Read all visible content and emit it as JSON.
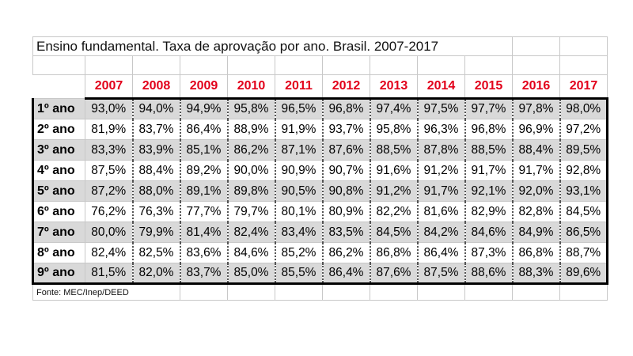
{
  "title": "Ensino fundamental. Taxa de aprovação por ano. Brasil. 2007-2017",
  "years": [
    "2007",
    "2008",
    "2009",
    "2010",
    "2011",
    "2012",
    "2013",
    "2014",
    "2015",
    "2016",
    "2017"
  ],
  "rows": [
    {
      "label": "1º ano",
      "values": [
        "93,0%",
        "94,0%",
        "94,9%",
        "95,8%",
        "96,5%",
        "96,8%",
        "97,4%",
        "97,5%",
        "97,7%",
        "97,8%",
        "98,0%"
      ]
    },
    {
      "label": "2º ano",
      "values": [
        "81,9%",
        "83,7%",
        "86,4%",
        "88,9%",
        "91,9%",
        "93,7%",
        "95,8%",
        "96,3%",
        "96,8%",
        "96,9%",
        "97,2%"
      ]
    },
    {
      "label": "3º ano",
      "values": [
        "83,3%",
        "83,9%",
        "85,1%",
        "86,2%",
        "87,1%",
        "87,6%",
        "88,5%",
        "87,8%",
        "88,5%",
        "88,4%",
        "89,5%"
      ]
    },
    {
      "label": "4º ano",
      "values": [
        "87,5%",
        "88,4%",
        "89,2%",
        "90,0%",
        "90,9%",
        "90,7%",
        "91,6%",
        "91,2%",
        "91,7%",
        "91,7%",
        "92,8%"
      ]
    },
    {
      "label": "5º ano",
      "values": [
        "87,2%",
        "88,0%",
        "89,1%",
        "89,8%",
        "90,5%",
        "90,8%",
        "91,2%",
        "91,7%",
        "92,1%",
        "92,0%",
        "93,1%"
      ]
    },
    {
      "label": "6º ano",
      "values": [
        "76,2%",
        "76,3%",
        "77,7%",
        "79,7%",
        "80,1%",
        "80,9%",
        "82,2%",
        "81,6%",
        "82,9%",
        "82,8%",
        "84,5%"
      ]
    },
    {
      "label": "7º ano",
      "values": [
        "80,0%",
        "79,9%",
        "81,4%",
        "82,4%",
        "83,4%",
        "83,5%",
        "84,5%",
        "84,2%",
        "84,6%",
        "84,9%",
        "86,5%"
      ]
    },
    {
      "label": "8º ano",
      "values": [
        "82,4%",
        "82,5%",
        "83,6%",
        "84,6%",
        "85,2%",
        "86,2%",
        "86,8%",
        "86,4%",
        "87,3%",
        "86,8%",
        "88,7%"
      ]
    },
    {
      "label": "9º ano",
      "values": [
        "81,5%",
        "82,0%",
        "83,7%",
        "85,0%",
        "85,5%",
        "86,4%",
        "87,6%",
        "87,5%",
        "88,6%",
        "88,3%",
        "89,6%"
      ]
    }
  ],
  "source": "Fonte: MEC/Inep/DEED",
  "colors": {
    "year_text": "#e2001a",
    "shade": "#d9d9d9",
    "grid": "#c8c8c8"
  },
  "chart_data": {
    "type": "table",
    "title": "Ensino fundamental. Taxa de aprovação por ano. Brasil. 2007-2017",
    "columns": [
      "2007",
      "2008",
      "2009",
      "2010",
      "2011",
      "2012",
      "2013",
      "2014",
      "2015",
      "2016",
      "2017"
    ],
    "row_labels": [
      "1º ano",
      "2º ano",
      "3º ano",
      "4º ano",
      "5º ano",
      "6º ano",
      "7º ano",
      "8º ano",
      "9º ano"
    ]
  }
}
